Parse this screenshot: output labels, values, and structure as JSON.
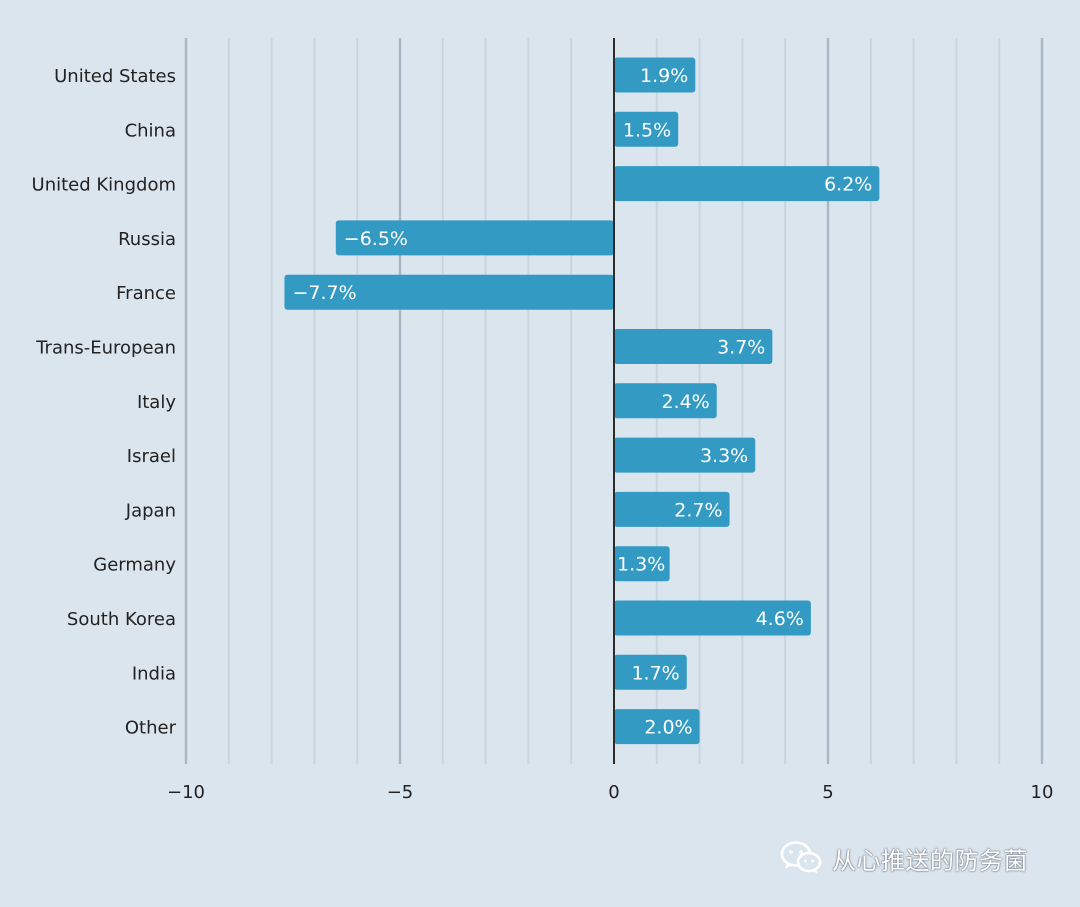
{
  "colors": {
    "background": "#dbe5ee",
    "bar": "#339ac4",
    "bar_label": "#ffffff",
    "grid_major": "#a9b8c4",
    "grid_minor": "#c9d5df",
    "zero_line": "#2b2b2b",
    "text": "#222222"
  },
  "chart_data": {
    "type": "bar",
    "orientation": "horizontal",
    "categories": [
      "United States",
      "China",
      "United Kingdom",
      "Russia",
      "France",
      "Trans-European",
      "Italy",
      "Israel",
      "Japan",
      "Germany",
      "South Korea",
      "India",
      "Other"
    ],
    "values": [
      1.9,
      1.5,
      6.2,
      -6.5,
      -7.7,
      3.7,
      2.4,
      3.3,
      2.7,
      1.3,
      4.6,
      1.7,
      2.0
    ],
    "data_labels": [
      "1.9%",
      "1.5%",
      "6.2%",
      "−6.5%",
      "−7.7%",
      "3.7%",
      "2.4%",
      "3.3%",
      "2.7%",
      "1.3%",
      "4.6%",
      "1.7%",
      "2.0%"
    ],
    "xlim": [
      -10,
      10
    ],
    "major_ticks": [
      -10,
      -5,
      0,
      5,
      10
    ],
    "tick_labels": [
      "−10",
      "−5",
      "0",
      "5",
      "10"
    ],
    "minor_tick_step": 1,
    "grid": true,
    "title": "",
    "xlabel": "",
    "ylabel": ""
  },
  "watermark": {
    "text": "从心推送的防务菌",
    "icon": "wechat-icon"
  }
}
